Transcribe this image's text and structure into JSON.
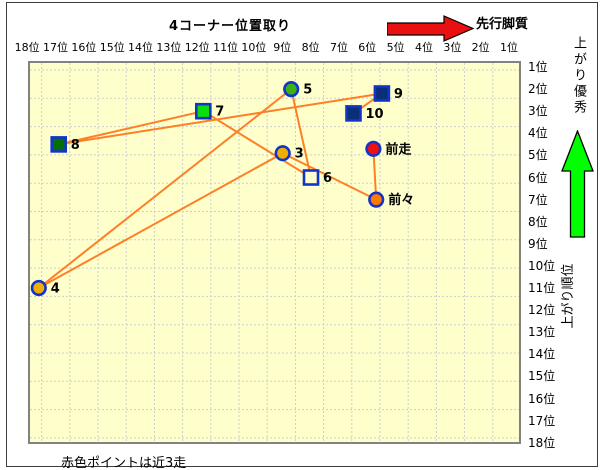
{
  "panel": {
    "title": "4コーナー位置取り",
    "pace_arrow_label": "先行脚質",
    "right_top_label": "上がり優秀",
    "right_bottom_label": "上がり順位",
    "footnote": "赤色ポイントは近3走"
  },
  "chart_data": {
    "type": "scatter",
    "title": "4コーナー位置取り",
    "grid": true,
    "background_color": "#FFFFCC",
    "line_color": "#FF7F27",
    "marker_border_color": "#1135CC",
    "x_axis": {
      "position": "top",
      "direction": "18位 at left, 1位 at right",
      "labels": [
        "18位",
        "17位",
        "16位",
        "15位",
        "14位",
        "13位",
        "12位",
        "11位",
        "10位",
        "9位",
        "8位",
        "7位",
        "6位",
        "5位",
        "4位",
        "3位",
        "2位",
        "1位"
      ]
    },
    "y_axis": {
      "position": "right",
      "direction": "1位 at top, 18位 at bottom",
      "labels": [
        "1位",
        "2位",
        "3位",
        "4位",
        "5位",
        "6位",
        "7位",
        "8位",
        "9位",
        "10位",
        "11位",
        "12位",
        "13位",
        "14位",
        "15位",
        "16位",
        "17位",
        "18位"
      ]
    },
    "points": [
      {
        "id": "10",
        "label": "10",
        "x_rank": 6.5,
        "y_rank": 3.1,
        "shape": "square",
        "fill": "#0A2E78"
      },
      {
        "id": "9",
        "label": "9",
        "x_rank": 5.5,
        "y_rank": 2.2,
        "shape": "square",
        "fill": "#0A2E78"
      },
      {
        "id": "8",
        "label": "8",
        "x_rank": 16.9,
        "y_rank": 4.5,
        "shape": "square",
        "fill": "#076E07"
      },
      {
        "id": "7",
        "label": "7",
        "x_rank": 11.8,
        "y_rank": 3.0,
        "shape": "square",
        "fill": "#0ADF0A"
      },
      {
        "id": "6",
        "label": "6",
        "x_rank": 8.0,
        "y_rank": 6.0,
        "shape": "square",
        "fill": "#FFFFCC"
      },
      {
        "id": "5",
        "label": "5",
        "x_rank": 8.7,
        "y_rank": 2.0,
        "shape": "circle",
        "fill": "#3DB012"
      },
      {
        "id": "4",
        "label": "4",
        "x_rank": 17.6,
        "y_rank": 11.0,
        "shape": "circle",
        "fill": "#F0AE00"
      },
      {
        "id": "3",
        "label": "3",
        "x_rank": 9.0,
        "y_rank": 4.9,
        "shape": "circle",
        "fill": "#F0AE00"
      },
      {
        "id": "前々",
        "label": "前々",
        "x_rank": 5.7,
        "y_rank": 7.0,
        "shape": "circle",
        "fill": "#FF7A00"
      },
      {
        "id": "前走",
        "label": "前走",
        "x_rank": 5.8,
        "y_rank": 4.7,
        "shape": "circle",
        "fill": "#EE1111"
      }
    ],
    "path": [
      "10",
      "9",
      "8",
      "7",
      "6",
      "5",
      "4",
      "3",
      "前々",
      "前走"
    ],
    "annotations": {
      "top_right_arrow": {
        "label": "先行脚質",
        "color": "#E81010",
        "direction": "right"
      },
      "right_side_arrow": {
        "label_top": "上がり優秀",
        "label_bottom": "上がり順位",
        "color": "#00FF00",
        "direction": "up"
      },
      "footnote": "赤色ポイントは近3走"
    }
  }
}
